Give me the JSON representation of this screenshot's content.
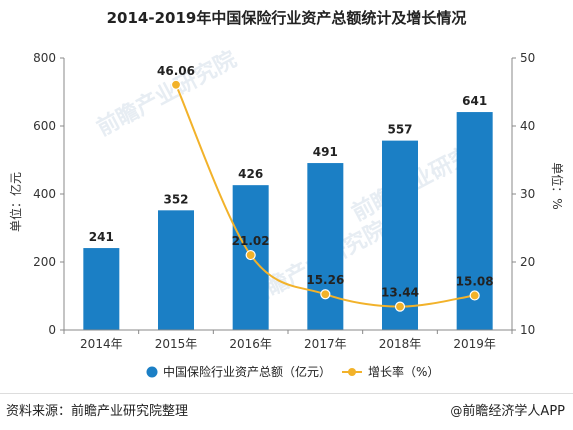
{
  "chart_data": {
    "type": "bar",
    "title": "2014-2019年中国保险行业资产总额统计及增长情况",
    "categories": [
      "2014年",
      "2015年",
      "2016年",
      "2017年",
      "2018年",
      "2019年"
    ],
    "series": [
      {
        "name": "中国保险行业资产总额（亿元）",
        "type": "bar",
        "axis": "left",
        "color": "#1b7fc5",
        "values": [
          241,
          352,
          426,
          491,
          557,
          641
        ]
      },
      {
        "name": "增长率（%）",
        "type": "line",
        "axis": "right",
        "color": "#f2b22a",
        "values": [
          null,
          46.06,
          21.02,
          15.26,
          13.44,
          15.08
        ]
      }
    ],
    "y_left": {
      "label": "单位：亿元",
      "min": 0,
      "max": 800,
      "ticks": [
        0,
        200,
        400,
        600,
        800
      ]
    },
    "y_right": {
      "label": "单位：%",
      "min": 10,
      "max": 50,
      "ticks": [
        10,
        20,
        30,
        40,
        50
      ]
    },
    "legend_position": "bottom"
  },
  "watermark": "前瞻产业研究院",
  "footer": {
    "source": "资料来源：前瞻产业研究院整理",
    "credit_symbol": "@",
    "credit": "前瞻经济学人APP"
  }
}
